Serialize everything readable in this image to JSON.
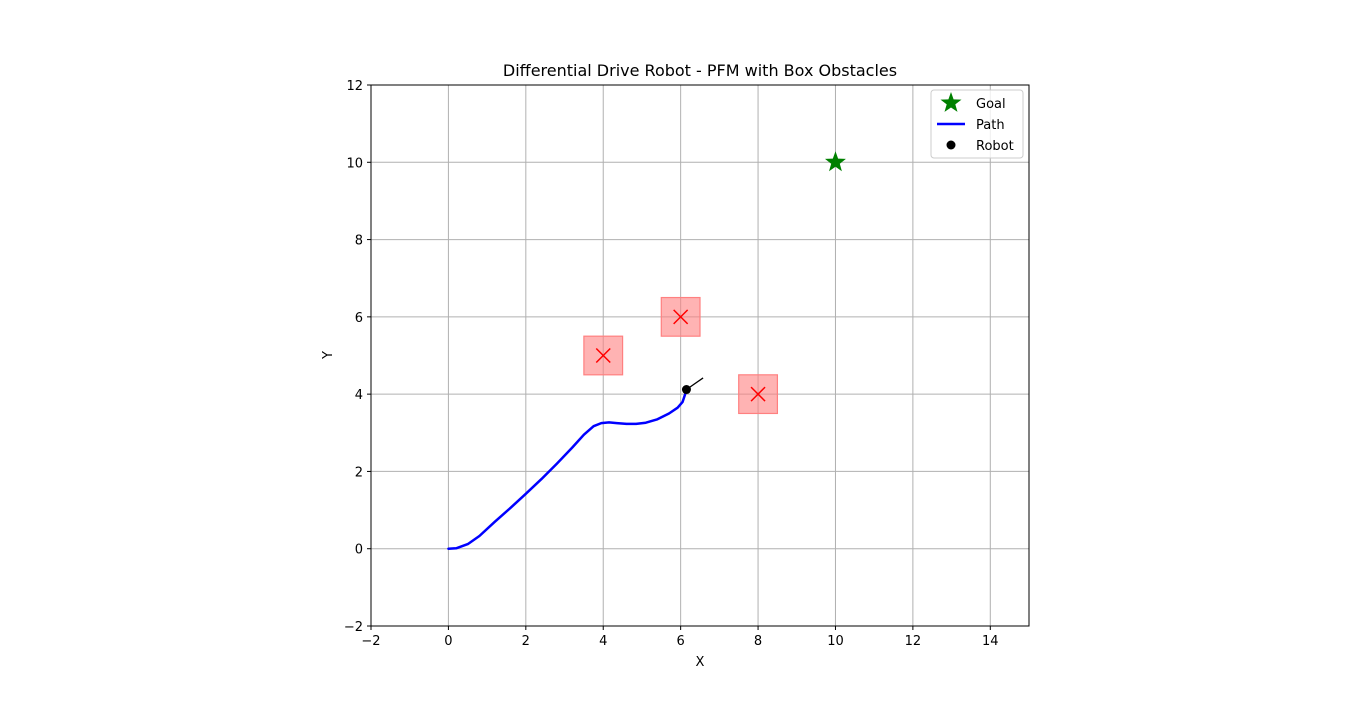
{
  "chart_data": {
    "type": "scatter",
    "title": "Differential Drive Robot - PFM with Box Obstacles",
    "xlabel": "X",
    "ylabel": "Y",
    "xlim": [
      -2,
      15
    ],
    "ylim": [
      -2,
      12
    ],
    "xticks": [
      -2,
      0,
      2,
      4,
      6,
      8,
      10,
      12,
      14
    ],
    "yticks": [
      -2,
      0,
      2,
      4,
      6,
      8,
      10,
      12
    ],
    "xtick_labels": [
      "−2",
      "0",
      "2",
      "4",
      "6",
      "8",
      "10",
      "12",
      "14"
    ],
    "ytick_labels": [
      "−2",
      "0",
      "2",
      "4",
      "6",
      "8",
      "10",
      "12"
    ],
    "grid": true,
    "legend_position": "top-right",
    "legend": [
      {
        "label": "Goal",
        "marker": "star",
        "color": "#008000"
      },
      {
        "label": "Path",
        "marker": "line",
        "color": "#0000ff"
      },
      {
        "label": "Robot",
        "marker": "dot",
        "color": "#000000"
      }
    ],
    "goal": {
      "x": 10,
      "y": 10,
      "color": "#008000"
    },
    "obstacles": [
      {
        "x": 4,
        "y": 5,
        "size": 1.0
      },
      {
        "x": 6,
        "y": 6,
        "size": 1.0
      },
      {
        "x": 8,
        "y": 4,
        "size": 1.0
      }
    ],
    "obstacle_fill": "#ff8080",
    "obstacle_marker_color": "#ff0000",
    "path": {
      "color": "#0000ff",
      "points": [
        [
          0,
          0
        ],
        [
          0.2,
          0.01
        ],
        [
          0.5,
          0.12
        ],
        [
          0.8,
          0.33
        ],
        [
          1.2,
          0.7
        ],
        [
          1.6,
          1.05
        ],
        [
          2.0,
          1.42
        ],
        [
          2.4,
          1.8
        ],
        [
          2.8,
          2.2
        ],
        [
          3.2,
          2.62
        ],
        [
          3.5,
          2.95
        ],
        [
          3.75,
          3.17
        ],
        [
          3.95,
          3.25
        ],
        [
          4.15,
          3.27
        ],
        [
          4.35,
          3.25
        ],
        [
          4.6,
          3.23
        ],
        [
          4.85,
          3.23
        ],
        [
          5.1,
          3.26
        ],
        [
          5.4,
          3.35
        ],
        [
          5.7,
          3.5
        ],
        [
          5.92,
          3.65
        ],
        [
          6.05,
          3.8
        ],
        [
          6.1,
          3.95
        ],
        [
          6.15,
          4.1
        ]
      ]
    },
    "robot": {
      "x": 6.15,
      "y": 4.12,
      "heading_end": [
        6.58,
        4.42
      ],
      "color": "#000000"
    }
  }
}
